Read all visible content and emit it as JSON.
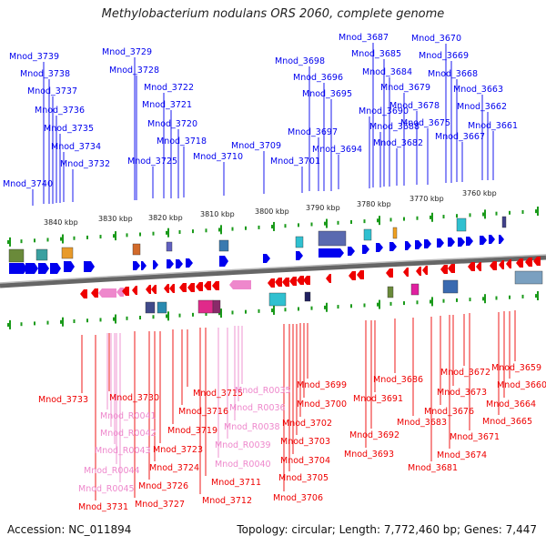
{
  "title": "Methylobacterium nodulans ORS 2060, complete genome",
  "footer": {
    "accession": "Accession: NC_011894",
    "summary": "Topology: circular; Length: 7,772,460 bp; Genes: 7,447"
  },
  "colors": {
    "forward": "#0000ee",
    "reverse": "#ee0000",
    "rna": "#ee88cc",
    "axis": "#666666",
    "tick": "#1a9a1a"
  },
  "scale_ticks": [
    "3840 kbp",
    "3830 kbp",
    "3820 kbp",
    "3810 kbp",
    "3800 kbp",
    "3790 kbp",
    "3780 kbp",
    "3770 kbp",
    "3760 kbp"
  ],
  "top_genes": [
    "Mnod_3740",
    "Mnod_3739",
    "Mnod_3738",
    "Mnod_3737",
    "Mnod_3736",
    "Mnod_3735",
    "Mnod_3734",
    "Mnod_3732",
    "Mnod_3729",
    "Mnod_3728",
    "Mnod_3725",
    "Mnod_3722",
    "Mnod_3721",
    "Mnod_3720",
    "Mnod_3718",
    "Mnod_3710",
    "Mnod_3709",
    "Mnod_3701",
    "Mnod_3698",
    "Mnod_3697",
    "Mnod_3696",
    "Mnod_3695",
    "Mnod_3694",
    "Mnod_3690",
    "Mnod_3688",
    "Mnod_3687",
    "Mnod_3685",
    "Mnod_3684",
    "Mnod_3682",
    "Mnod_3679",
    "Mnod_3678",
    "Mnod_3675",
    "Mnod_3670",
    "Mnod_3669",
    "Mnod_3668",
    "Mnod_3667",
    "Mnod_3663",
    "Mnod_3662",
    "Mnod_3661"
  ],
  "bottom_genes": [
    "Mnod_3733",
    "Mnod_3731",
    "Mnod_3730",
    "Mnod_R0041",
    "Mnod_R0042",
    "Mnod_R0043",
    "Mnod_R0044",
    "Mnod_R0045",
    "Mnod_3727",
    "Mnod_3726",
    "Mnod_3724",
    "Mnod_3723",
    "Mnod_3719",
    "Mnod_3716",
    "Mnod_3715",
    "Mnod_3712",
    "Mnod_3711",
    "Mnod_R0040",
    "Mnod_R0039",
    "Mnod_R0038",
    "Mnod_R0036",
    "Mnod_R0035",
    "Mnod_3706",
    "Mnod_3705",
    "Mnod_3704",
    "Mnod_3703",
    "Mnod_3702",
    "Mnod_3700",
    "Mnod_3699",
    "Mnod_3693",
    "Mnod_3692",
    "Mnod_3691",
    "Mnod_3686",
    "Mnod_3683",
    "Mnod_3681",
    "Mnod_3676",
    "Mnod_3674",
    "Mnod_3673",
    "Mnod_3672",
    "Mnod_3671",
    "Mnod_3665",
    "Mnod_3664",
    "Mnod_3660",
    "Mnod_3659"
  ]
}
